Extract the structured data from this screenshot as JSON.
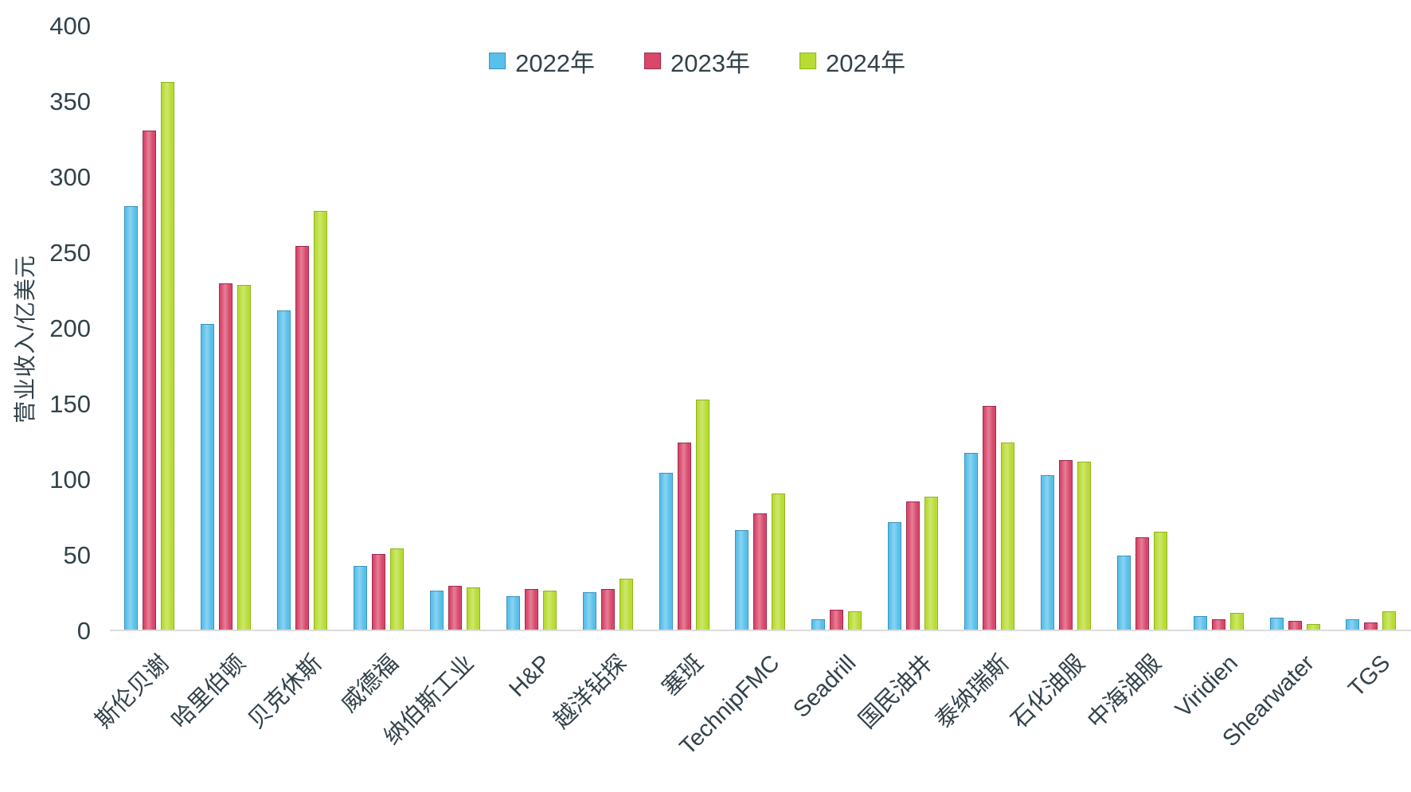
{
  "chart_data": {
    "type": "bar",
    "title": "",
    "xlabel": "",
    "ylabel": "营业收入/亿美元",
    "ylim": [
      0,
      400
    ],
    "ytick_step": 50,
    "grid": false,
    "legend_position": "top-center",
    "axis_line_color": "#dcdcdc",
    "text_color": "#33424a",
    "categories": [
      "斯伦贝谢",
      "哈里伯顿",
      "贝克休斯",
      "威德福",
      "纳伯斯工业",
      "H&P",
      "越洋钻探",
      "塞班",
      "TechnipFMC",
      "Seadrill",
      "国民油井",
      "泰纳瑞斯",
      "石化油服",
      "中海油服",
      "Viridien",
      "Shearwater",
      "TGS"
    ],
    "series": [
      {
        "name": "2022年",
        "color": "#58c0ea",
        "border_color": "#3c93bf",
        "values": [
          281,
          203,
          212,
          43,
          27,
          23,
          26,
          105,
          67,
          8,
          72,
          118,
          103,
          50,
          10,
          9,
          8
        ]
      },
      {
        "name": "2023年",
        "color": "#d9476b",
        "border_color": "#a02a4c",
        "values": [
          331,
          230,
          255,
          51,
          30,
          28,
          28,
          125,
          78,
          14,
          86,
          149,
          113,
          62,
          8,
          7,
          6
        ]
      },
      {
        "name": "2024年",
        "color": "#b8dc33",
        "border_color": "#92b31d",
        "values": [
          363,
          229,
          278,
          55,
          29,
          27,
          35,
          153,
          91,
          13,
          89,
          125,
          112,
          66,
          12,
          5,
          13
        ]
      }
    ]
  }
}
